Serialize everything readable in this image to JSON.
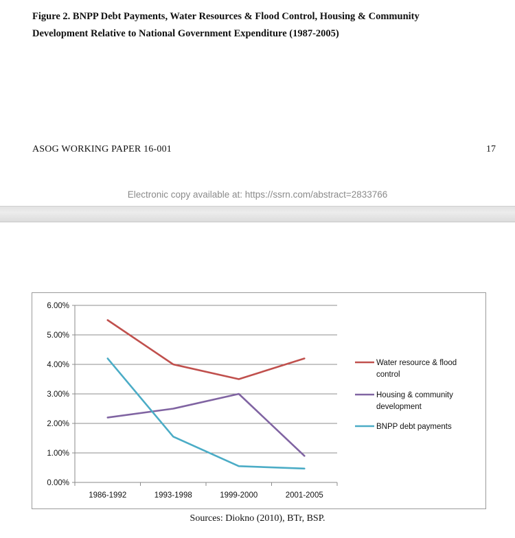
{
  "figure": {
    "title_line1": "Figure 2. BNPP Debt Payments, Water Resources & Flood Control, Housing & Community",
    "title_line2": "Development Relative to National Government Expenditure (1987-2005)"
  },
  "footer": {
    "left": "ASOG WORKING PAPER 16-001",
    "page_number": "17"
  },
  "ssrn_notice": "Electronic copy available at: https://ssrn.com/abstract=2833766",
  "sources": "Sources: Diokno (2010), BTr, BSP.",
  "chart_data": {
    "type": "line",
    "title": "",
    "xlabel": "",
    "ylabel": "",
    "categories": [
      "1986-1992",
      "1993-1998",
      "1999-2000",
      "2001-2005"
    ],
    "y_ticks": [
      "0.00%",
      "1.00%",
      "2.00%",
      "3.00%",
      "4.00%",
      "5.00%",
      "6.00%"
    ],
    "ylim": [
      0,
      6
    ],
    "grid": true,
    "legend_position": "right",
    "series": [
      {
        "name_lines": [
          "Water resource & flood",
          "control"
        ],
        "color": "#C0504D",
        "values": [
          5.5,
          4.0,
          3.5,
          4.2
        ]
      },
      {
        "name_lines": [
          "Housing & community",
          "development"
        ],
        "color": "#8064A2",
        "values": [
          2.2,
          2.5,
          3.0,
          0.9
        ]
      },
      {
        "name_lines": [
          "BNPP debt payments"
        ],
        "color": "#4BACC6",
        "values": [
          4.2,
          1.55,
          0.55,
          0.47
        ]
      }
    ]
  }
}
